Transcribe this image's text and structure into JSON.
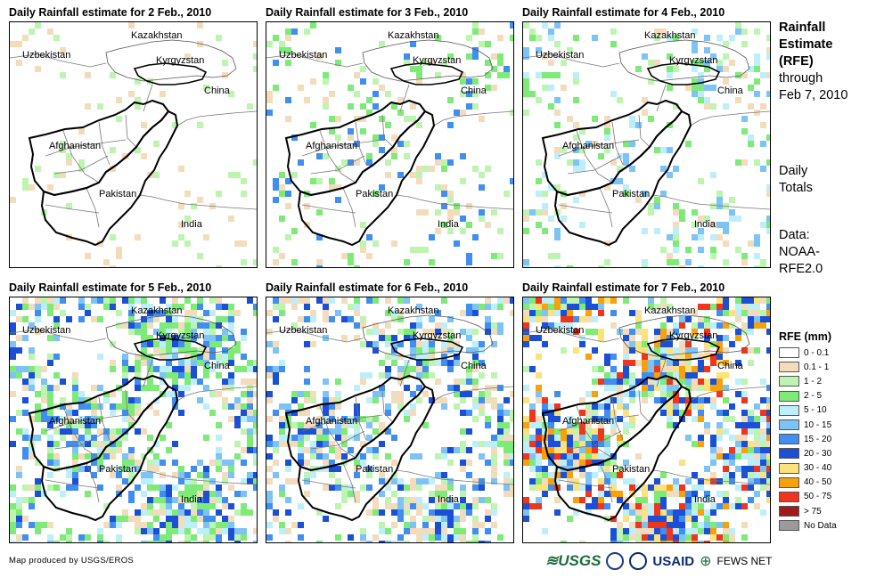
{
  "panels": [
    {
      "title": "Daily Rainfall estimate for 2 Feb., 2010",
      "day": 2
    },
    {
      "title": "Daily Rainfall estimate for 3 Feb., 2010",
      "day": 3
    },
    {
      "title": "Daily Rainfall estimate for 4 Feb., 2010",
      "day": 4
    },
    {
      "title": "Daily Rainfall estimate for 5 Feb., 2010",
      "day": 5
    },
    {
      "title": "Daily Rainfall estimate for 6 Feb., 2010",
      "day": 6
    },
    {
      "title": "Daily Rainfall estimate for 7 Feb., 2010",
      "day": 7
    }
  ],
  "map_labels": {
    "kazakhstan": "Kazakhstan",
    "uzbekistan": "Uzbekistan",
    "kyrgyzstan": "Kyrgyzstan",
    "china": "China",
    "afghanistan": "Afghanistan",
    "pakistan": "Pakistan",
    "india": "India"
  },
  "side_info": {
    "title_line1": "Rainfall",
    "title_line2": "Estimate",
    "title_line3": "(RFE)",
    "through": "through",
    "date": "Feb 7, 2010",
    "daily1": "Daily",
    "daily2": "Totals",
    "data1": "Data:",
    "data2": "NOAA-",
    "data3": "RFE2.0"
  },
  "legend": {
    "title": "RFE (mm)",
    "items": [
      {
        "label": "0 - 0.1",
        "color": "#ffffff"
      },
      {
        "label": "0.1 - 1",
        "color": "#f2dcbb"
      },
      {
        "label": "1 - 2",
        "color": "#bdf5b0"
      },
      {
        "label": "2 - 5",
        "color": "#7eea78"
      },
      {
        "label": "5 - 10",
        "color": "#bdeffa"
      },
      {
        "label": "10 - 15",
        "color": "#7ec3f5"
      },
      {
        "label": "15 - 20",
        "color": "#3f8ef0"
      },
      {
        "label": "20 - 30",
        "color": "#1a4fd6"
      },
      {
        "label": "30 - 40",
        "color": "#fbe27a"
      },
      {
        "label": "40 - 50",
        "color": "#f7a10d"
      },
      {
        "label": "50 - 75",
        "color": "#f0351c"
      },
      {
        "label": "> 75",
        "color": "#a31a1a"
      },
      {
        "label": "No Data",
        "color": "#9a9a9a"
      }
    ]
  },
  "footer": {
    "credit": "Map produced by USGS/EROS"
  },
  "logos": {
    "usgs": "≋USGS",
    "usaid": "USAID",
    "fews": "FEWS NET"
  }
}
